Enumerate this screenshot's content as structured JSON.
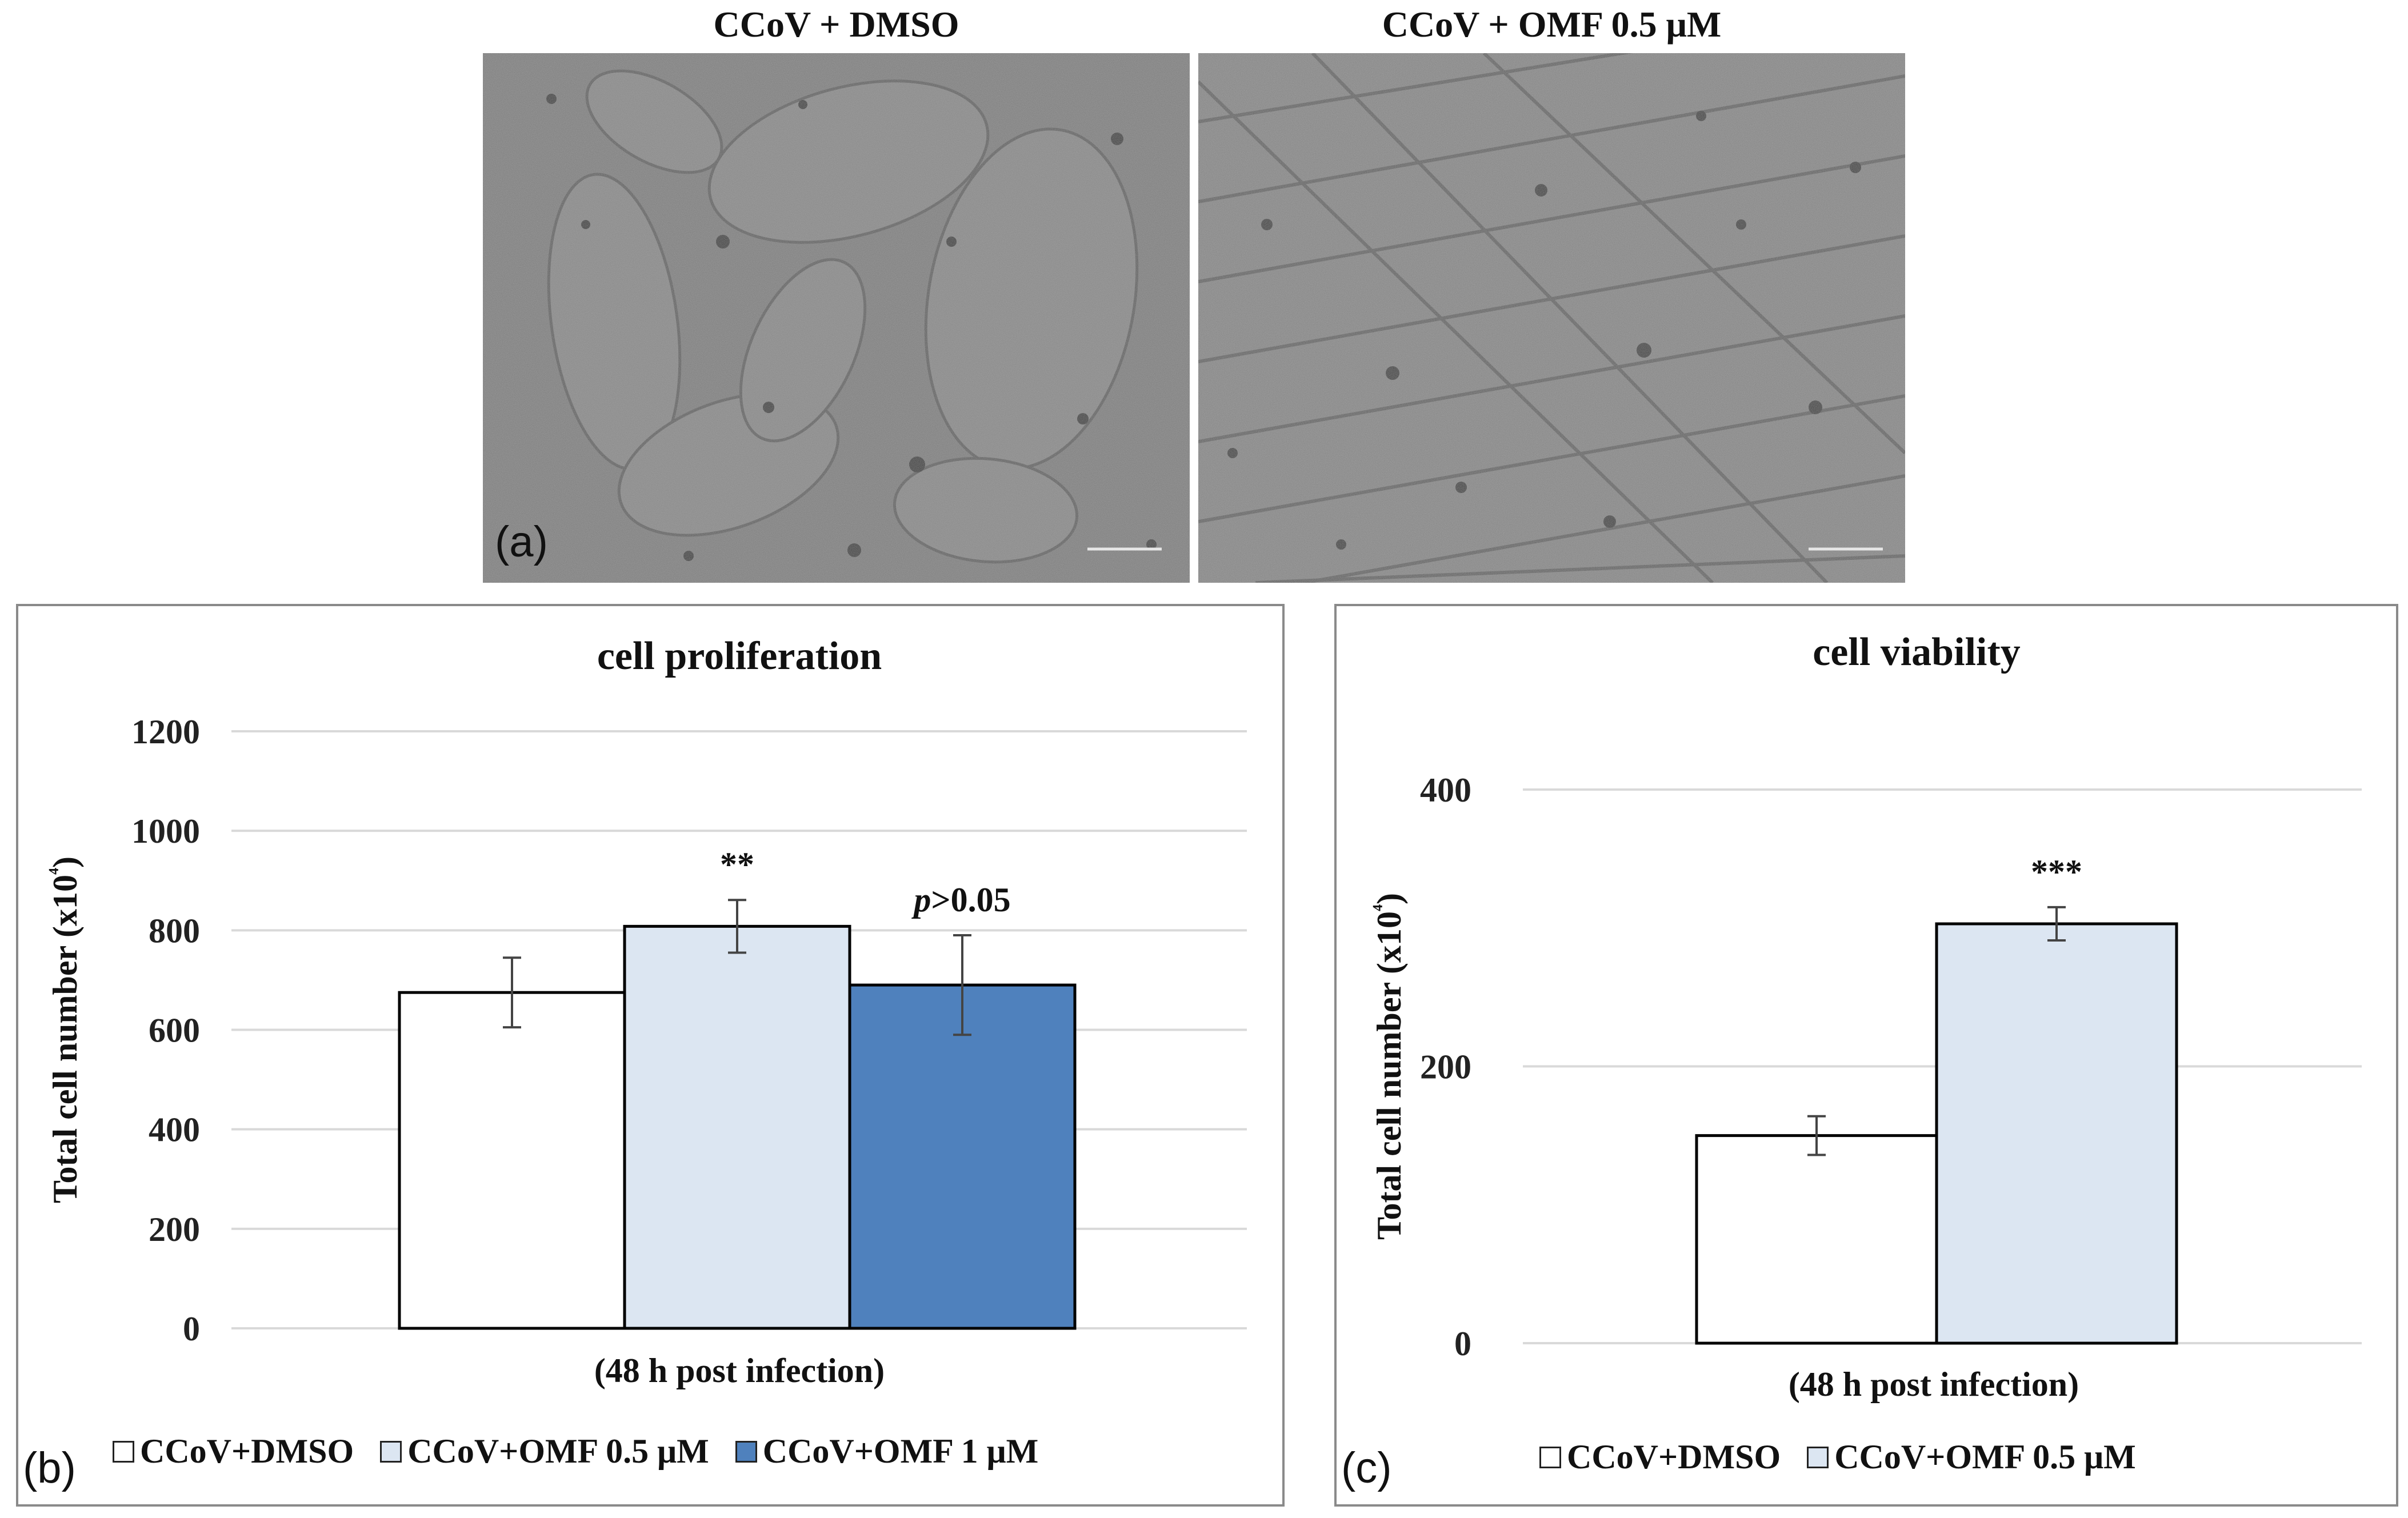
{
  "figure": {
    "panel_a": {
      "label": "(a)",
      "images": [
        {
          "title": "CCoV + DMSO"
        },
        {
          "title": "CCoV + OMF 0.5 μM"
        }
      ]
    },
    "panel_b": {
      "label": "(b)"
    },
    "panel_c": {
      "label": "(c)"
    }
  },
  "chart_data": [
    {
      "type": "bar",
      "title": "cell proliferation",
      "xlabel": "(48 h post infection)",
      "ylabel": "Total cell number (x10⁴)",
      "categories": [
        "(48 h post infection)"
      ],
      "ylim": [
        0,
        1200
      ],
      "yticks": [
        0,
        200,
        400,
        600,
        800,
        1000,
        1200
      ],
      "grid": true,
      "legend_position": "bottom",
      "series": [
        {
          "name": "CCoV+DMSO",
          "values": [
            675
          ],
          "error": [
            70
          ],
          "color": "#ffffff",
          "annotation": ""
        },
        {
          "name": "CCoV+OMF 0.5 μM",
          "values": [
            808
          ],
          "error": [
            53
          ],
          "color": "#dce6f2",
          "annotation": "**"
        },
        {
          "name": "CCoV+OMF 1 μM",
          "values": [
            690
          ],
          "error": [
            100
          ],
          "color": "#4f81bd",
          "annotation": "p>0.05"
        }
      ]
    },
    {
      "type": "bar",
      "title": "cell viability",
      "xlabel": "(48 h post infection)",
      "ylabel": "Total cell number (x10⁴)",
      "categories": [
        "(48 h post infection)"
      ],
      "ylim": [
        0,
        400
      ],
      "yticks": [
        0,
        200,
        400
      ],
      "grid": true,
      "legend_position": "bottom",
      "series": [
        {
          "name": "CCoV+DMSO",
          "values": [
            150
          ],
          "error": [
            14
          ],
          "color": "#ffffff",
          "annotation": ""
        },
        {
          "name": "CCoV+OMF 0.5 μM",
          "values": [
            303
          ],
          "error": [
            12
          ],
          "color": "#dce6f2",
          "annotation": "***"
        }
      ]
    }
  ]
}
